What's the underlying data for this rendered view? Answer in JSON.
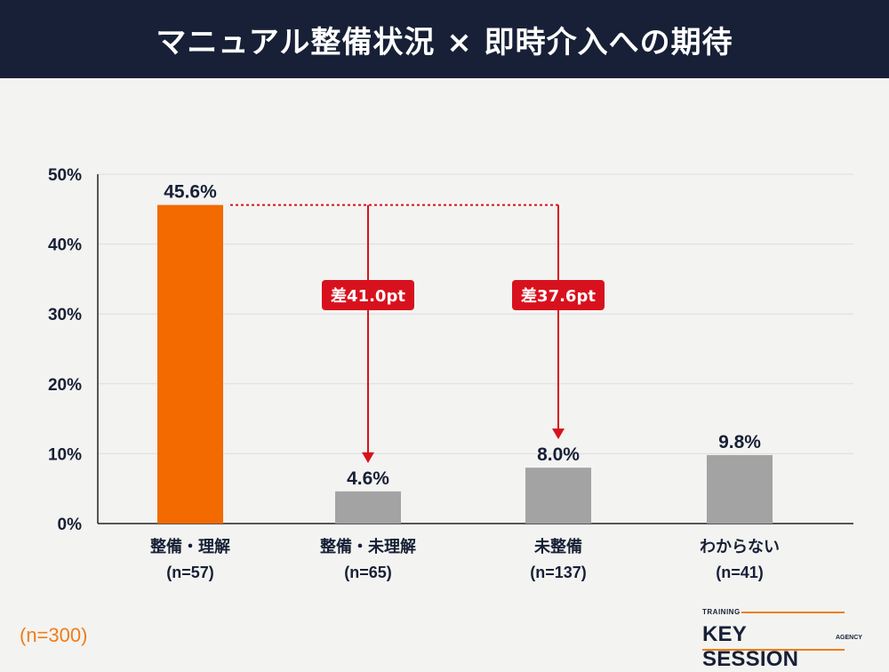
{
  "header": {
    "title": "マニュアル整備状況 × 即時介入への期待"
  },
  "colors": {
    "header_bg": "#172036",
    "highlight_bar": "#f26a00",
    "base_bar": "#a3a3a3",
    "annotation_red": "#d7121e",
    "text_dark": "#172036",
    "accent_orange": "#ef7d1a"
  },
  "chart_data": {
    "type": "bar",
    "title": "マニュアル整備状況 × 即時介入への期待",
    "categories": [
      "整備・理解",
      "整備・未理解",
      "未整備",
      "わからない"
    ],
    "sample_sizes": [
      "(n=57)",
      "(n=65)",
      "(n=137)",
      "(n=41)"
    ],
    "values": [
      45.6,
      4.6,
      8.0,
      9.8
    ],
    "value_labels": [
      "45.6%",
      "4.6%",
      "8.0%",
      "9.8%"
    ],
    "highlight_index": 0,
    "yticks": [
      0,
      10,
      20,
      30,
      40,
      50
    ],
    "ytick_labels": [
      "0%",
      "10%",
      "20%",
      "30%",
      "40%",
      "50%"
    ],
    "ylim": [
      0,
      50
    ],
    "grid": true,
    "annotations": [
      {
        "label": "差41.0pt",
        "from_index": 0,
        "to_index": 1
      },
      {
        "label": "差37.6pt",
        "from_index": 0,
        "to_index": 2
      }
    ]
  },
  "footer": {
    "sample_total": "(n=300)",
    "logo_small": "TRAINING",
    "logo_main": "KEY SESSION",
    "logo_agency": "AGENCY"
  }
}
